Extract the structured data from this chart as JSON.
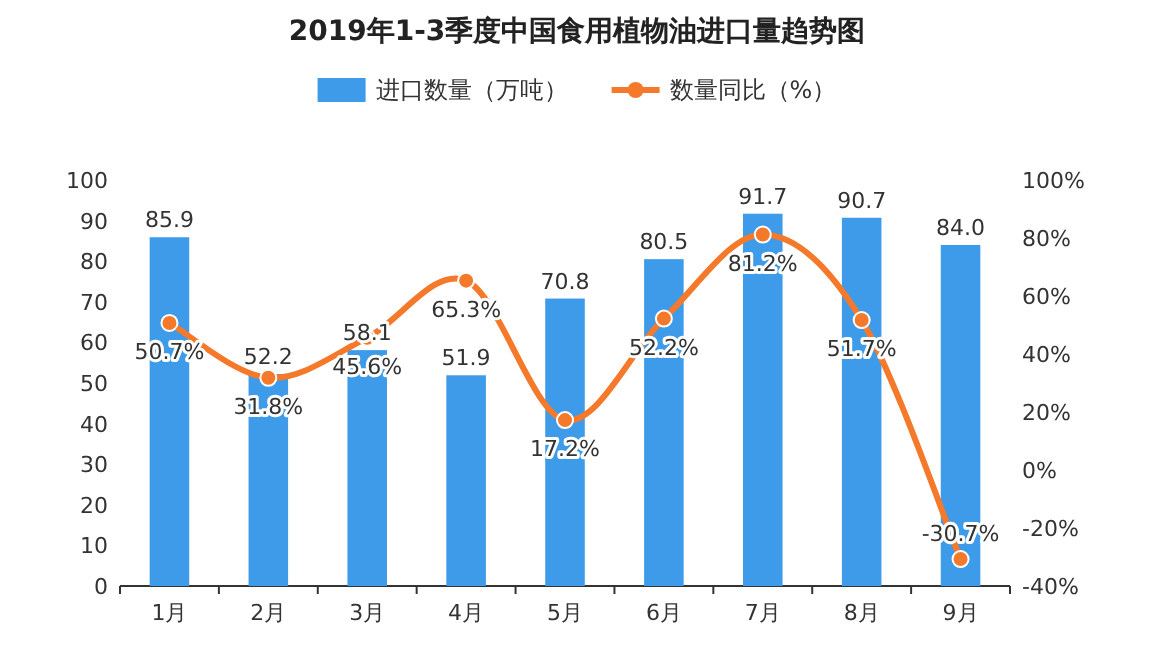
{
  "chart_data": {
    "type": "bar",
    "title": "2019年1-3季度中国食用植物油进口量趋势图",
    "categories": [
      "1月",
      "2月",
      "3月",
      "4月",
      "5月",
      "6月",
      "7月",
      "8月",
      "9月"
    ],
    "series": [
      {
        "name": "进口数量（万吨）",
        "color": "#3d9be9",
        "values": [
          85.9,
          52.2,
          58.1,
          51.9,
          70.8,
          80.5,
          91.7,
          90.7,
          84.0
        ],
        "value_labels": [
          "85.9",
          "52.2",
          "58.1",
          "51.9",
          "70.8",
          "80.5",
          "91.7",
          "90.7",
          "84.0"
        ]
      },
      {
        "name": "数量同比（%）",
        "type": "line",
        "axis": "y2",
        "color": "#f4792a",
        "values": [
          50.7,
          31.8,
          45.6,
          65.3,
          17.2,
          52.2,
          81.2,
          51.7,
          -30.7
        ],
        "value_labels": [
          "50.7%",
          "31.8%",
          "45.6%",
          "65.3%",
          "17.2%",
          "52.2%",
          "81.2%",
          "51.7%",
          "-30.7%"
        ]
      }
    ],
    "ylim": [
      0,
      100
    ],
    "yticks": [
      0,
      10,
      20,
      30,
      40,
      50,
      60,
      70,
      80,
      90,
      100
    ],
    "y2lim": [
      -40,
      100
    ],
    "y2ticks": [
      {
        "value": -40,
        "label": "-40%"
      },
      {
        "value": -20,
        "label": "-20%"
      },
      {
        "value": 0,
        "label": "0%"
      },
      {
        "value": 20,
        "label": "20%"
      },
      {
        "value": 40,
        "label": "40%"
      },
      {
        "value": 60,
        "label": "60%"
      },
      {
        "value": 80,
        "label": "80%"
      },
      {
        "value": 100,
        "label": "100%"
      }
    ],
    "marker": "circle",
    "legend": "top",
    "grid": false
  }
}
